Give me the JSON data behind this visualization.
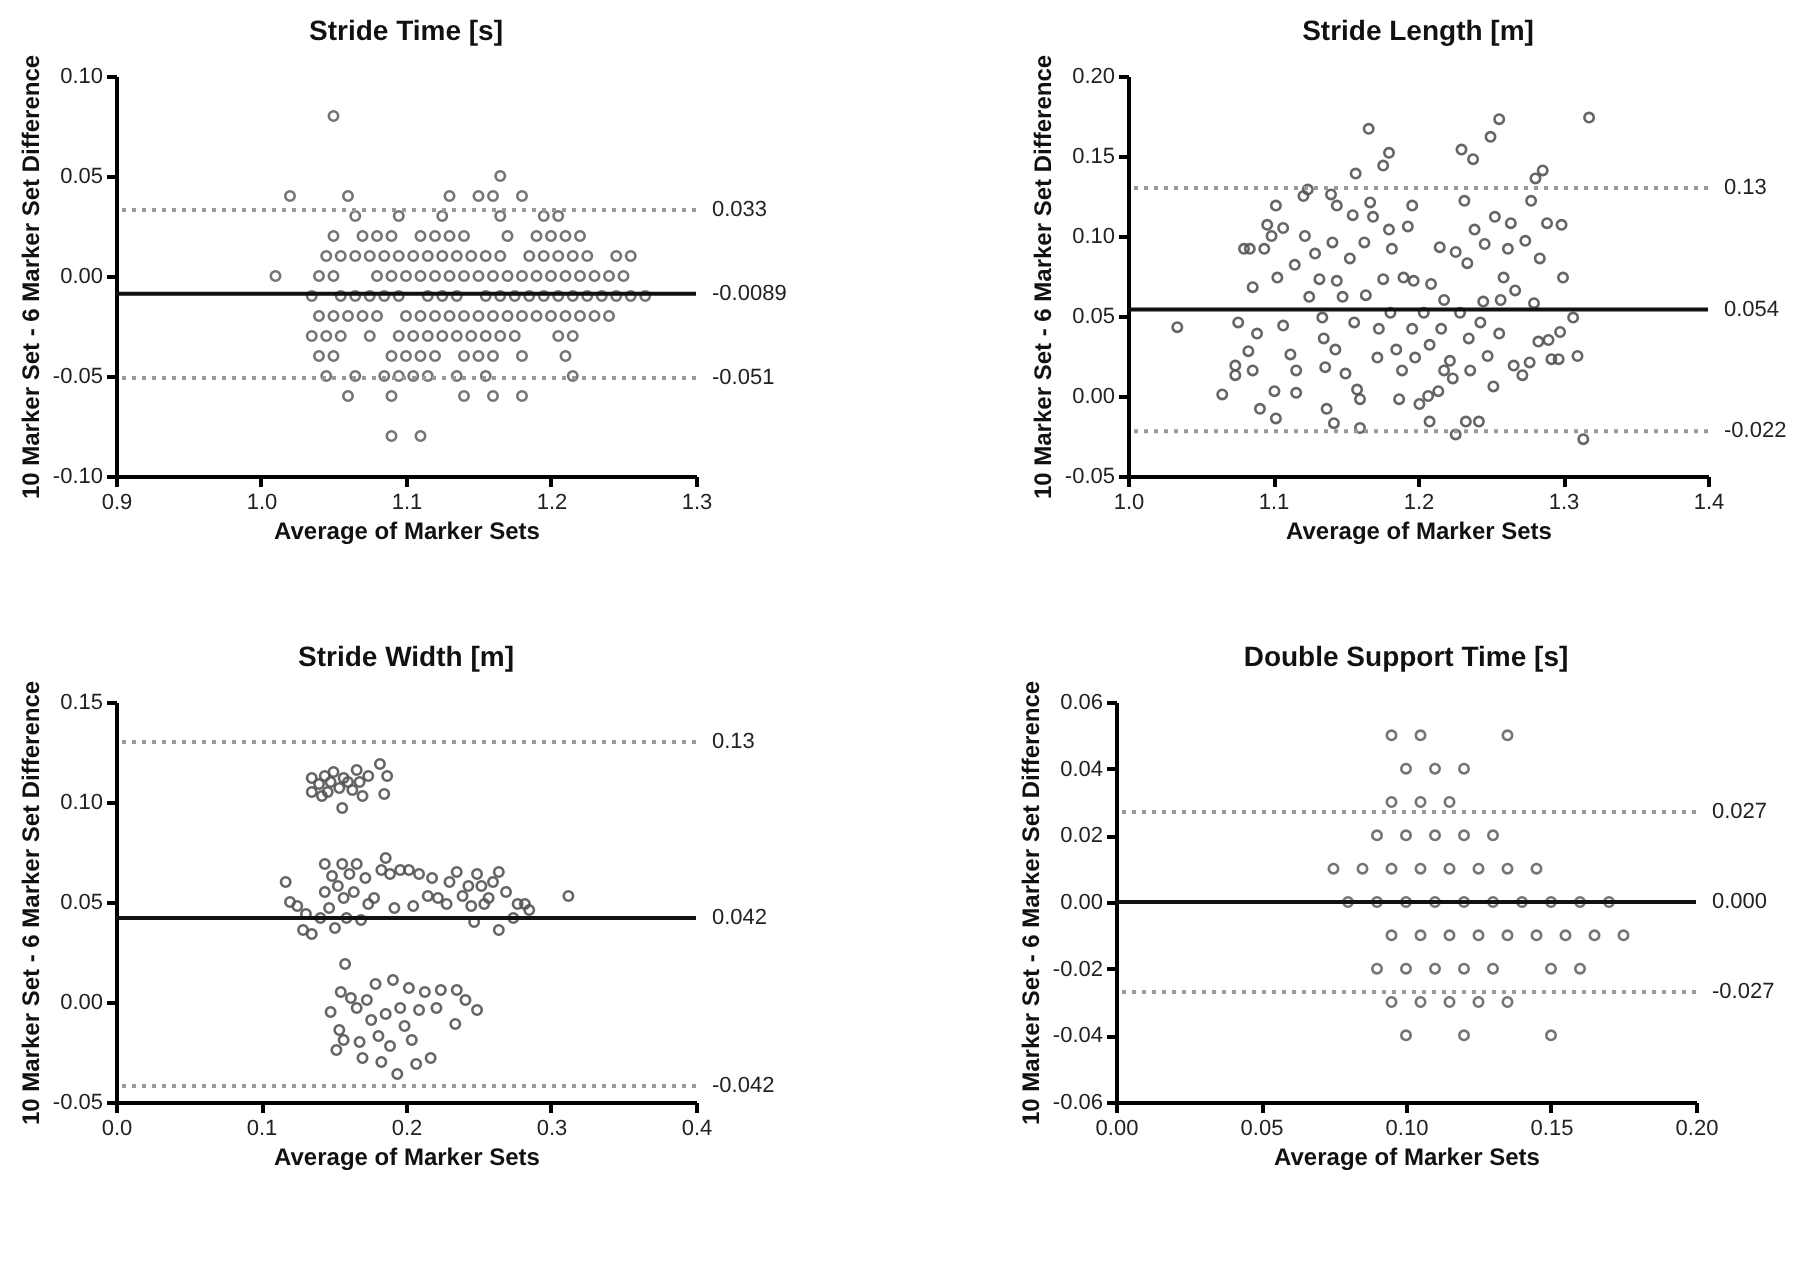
{
  "chart_data": [
    {
      "type": "scatter",
      "title": "Stride Time [s]",
      "xlabel": "Average of Marker Sets",
      "ylabel": "10 Marker Set - 6 Marker Set Difference",
      "marker": "circle",
      "xlim": [
        0.9,
        1.3
      ],
      "xticks": [
        0.9,
        {
          "value": 1,
          "label": "1.0"
        },
        1.1,
        1.2,
        1.3
      ],
      "ylim": [
        -0.1,
        0.1
      ],
      "yticks": [
        {
          "value": -0.1,
          "label": "-0.10"
        },
        -0.05,
        {
          "value": 0,
          "label": "0.00"
        },
        0.05,
        {
          "value": 0.1,
          "label": "0.10"
        }
      ],
      "ref_lines": [
        {
          "axis": "y",
          "value": 0.033,
          "label": "0.033",
          "line_style": "dotted",
          "color": "#999999"
        },
        {
          "axis": "y",
          "value": -0.0089,
          "label": "-0.0089",
          "line_style": "solid",
          "color": "#111111"
        },
        {
          "axis": "y",
          "value": -0.051,
          "label": "-0.051",
          "line_style": "dotted",
          "color": "#999999"
        }
      ],
      "series": [
        {
          "color": "#666666",
          "x": [
            1.05,
            1.165,
            1.02,
            1.06,
            1.13,
            1.15,
            1.16,
            1.18,
            1.065,
            1.095,
            1.125,
            1.165,
            1.195,
            1.205,
            1.05,
            1.07,
            1.08,
            1.09,
            1.11,
            1.12,
            1.13,
            1.14,
            1.17,
            1.19,
            1.2,
            1.21,
            1.22,
            1.045,
            1.055,
            1.065,
            1.075,
            1.085,
            1.095,
            1.105,
            1.115,
            1.125,
            1.135,
            1.145,
            1.155,
            1.165,
            1.185,
            1.195,
            1.205,
            1.215,
            1.225,
            1.245,
            1.255,
            1.01,
            1.04,
            1.05,
            1.08,
            1.09,
            1.1,
            1.11,
            1.12,
            1.13,
            1.14,
            1.15,
            1.16,
            1.17,
            1.18,
            1.19,
            1.2,
            1.21,
            1.22,
            1.23,
            1.24,
            1.25,
            1.035,
            1.055,
            1.065,
            1.075,
            1.085,
            1.095,
            1.115,
            1.125,
            1.135,
            1.155,
            1.165,
            1.175,
            1.185,
            1.195,
            1.205,
            1.215,
            1.225,
            1.235,
            1.245,
            1.255,
            1.265,
            1.04,
            1.05,
            1.06,
            1.07,
            1.08,
            1.1,
            1.11,
            1.12,
            1.13,
            1.14,
            1.15,
            1.16,
            1.17,
            1.18,
            1.19,
            1.2,
            1.21,
            1.22,
            1.23,
            1.24,
            1.035,
            1.045,
            1.055,
            1.075,
            1.095,
            1.105,
            1.115,
            1.125,
            1.135,
            1.145,
            1.155,
            1.165,
            1.175,
            1.205,
            1.215,
            1.04,
            1.05,
            1.09,
            1.1,
            1.11,
            1.12,
            1.14,
            1.15,
            1.16,
            1.18,
            1.21,
            1.045,
            1.065,
            1.085,
            1.095,
            1.105,
            1.115,
            1.135,
            1.155,
            1.215,
            1.06,
            1.09,
            1.14,
            1.16,
            1.18,
            1.09,
            1.11
          ],
          "values": [
            0.08,
            0.05,
            0.04,
            0.04,
            0.04,
            0.04,
            0.04,
            0.04,
            0.03,
            0.03,
            0.03,
            0.03,
            0.03,
            0.03,
            0.02,
            0.02,
            0.02,
            0.02,
            0.02,
            0.02,
            0.02,
            0.02,
            0.02,
            0.02,
            0.02,
            0.02,
            0.02,
            0.01,
            0.01,
            0.01,
            0.01,
            0.01,
            0.01,
            0.01,
            0.01,
            0.01,
            0.01,
            0.01,
            0.01,
            0.01,
            0.01,
            0.01,
            0.01,
            0.01,
            0.01,
            0.01,
            0.01,
            0,
            0,
            0,
            0,
            0,
            0,
            0,
            0,
            0,
            0,
            0,
            0,
            0,
            0,
            0,
            0,
            0,
            0,
            0,
            0,
            0,
            -0.01,
            -0.01,
            -0.01,
            -0.01,
            -0.01,
            -0.01,
            -0.01,
            -0.01,
            -0.01,
            -0.01,
            -0.01,
            -0.01,
            -0.01,
            -0.01,
            -0.01,
            -0.01,
            -0.01,
            -0.01,
            -0.01,
            -0.01,
            -0.01,
            -0.02,
            -0.02,
            -0.02,
            -0.02,
            -0.02,
            -0.02,
            -0.02,
            -0.02,
            -0.02,
            -0.02,
            -0.02,
            -0.02,
            -0.02,
            -0.02,
            -0.02,
            -0.02,
            -0.02,
            -0.02,
            -0.02,
            -0.02,
            -0.03,
            -0.03,
            -0.03,
            -0.03,
            -0.03,
            -0.03,
            -0.03,
            -0.03,
            -0.03,
            -0.03,
            -0.03,
            -0.03,
            -0.03,
            -0.03,
            -0.03,
            -0.04,
            -0.04,
            -0.04,
            -0.04,
            -0.04,
            -0.04,
            -0.04,
            -0.04,
            -0.04,
            -0.04,
            -0.04,
            -0.05,
            -0.05,
            -0.05,
            -0.05,
            -0.05,
            -0.05,
            -0.05,
            -0.05,
            -0.05,
            -0.06,
            -0.06,
            -0.06,
            -0.06,
            -0.06,
            -0.08,
            -0.08
          ]
        }
      ]
    },
    {
      "type": "scatter",
      "title": "Stride Length [m]",
      "xlabel": "Average of Marker Sets",
      "ylabel": "10 Marker Set - 6 Marker Set Difference",
      "marker": "circle",
      "xlim": [
        1.0,
        1.4
      ],
      "xticks": [
        {
          "value": 1,
          "label": "1.0"
        },
        1.1,
        1.2,
        1.3,
        1.4
      ],
      "ylim": [
        -0.05,
        0.2
      ],
      "yticks": [
        -0.05,
        {
          "value": 0,
          "label": "0.00"
        },
        0.05,
        {
          "value": 0.1,
          "label": "0.10"
        },
        0.15,
        {
          "value": 0.2,
          "label": "0.20"
        }
      ],
      "ref_lines": [
        {
          "axis": "y",
          "value": 0.13,
          "label": "0.13",
          "line_style": "dotted",
          "color": "#999999"
        },
        {
          "axis": "y",
          "value": 0.054,
          "label": "0.054",
          "line_style": "solid",
          "color": "#111111"
        },
        {
          "axis": "y",
          "value": -0.022,
          "label": "-0.022",
          "line_style": "dotted",
          "color": "#999999"
        }
      ],
      "series": [
        {
          "color": "#555555",
          "x": [
            1.034,
            1.065,
            1.074,
            1.074,
            1.076,
            1.08,
            1.084,
            1.094,
            1.086,
            1.089,
            1.083,
            1.086,
            1.091,
            1.096,
            1.099,
            1.102,
            1.101,
            1.102,
            1.103,
            1.107,
            1.107,
            1.112,
            1.115,
            1.116,
            1.116,
            1.121,
            1.124,
            1.122,
            1.125,
            1.129,
            1.132,
            1.134,
            1.135,
            1.136,
            1.137,
            1.14,
            1.144,
            1.141,
            1.144,
            1.148,
            1.143,
            1.142,
            1.15,
            1.153,
            1.155,
            1.157,
            1.156,
            1.158,
            1.16,
            1.16,
            1.163,
            1.166,
            1.167,
            1.164,
            1.169,
            1.172,
            1.173,
            1.176,
            1.176,
            1.18,
            1.18,
            1.181,
            1.182,
            1.185,
            1.187,
            1.189,
            1.19,
            1.193,
            1.196,
            1.196,
            1.197,
            1.198,
            1.201,
            1.204,
            1.207,
            1.208,
            1.208,
            1.209,
            1.214,
            1.215,
            1.216,
            1.218,
            1.218,
            1.222,
            1.224,
            1.226,
            1.226,
            1.229,
            1.23,
            1.232,
            1.234,
            1.233,
            1.235,
            1.236,
            1.238,
            1.239,
            1.242,
            1.243,
            1.245,
            1.246,
            1.248,
            1.25,
            1.252,
            1.253,
            1.256,
            1.256,
            1.257,
            1.259,
            1.262,
            1.264,
            1.266,
            1.267,
            1.272,
            1.274,
            1.277,
            1.278,
            1.28,
            1.281,
            1.283,
            1.286,
            1.284,
            1.289,
            1.29,
            1.292,
            1.297,
            1.298,
            1.3,
            1.299,
            1.307,
            1.31,
            1.314,
            1.318
          ],
          "values": [
            0.043,
            0.001,
            0.013,
            0.019,
            0.046,
            0.092,
            0.092,
            0.092,
            0.068,
            0.039,
            0.028,
            0.016,
            -0.008,
            0.107,
            0.1,
            0.119,
            0.003,
            -0.014,
            0.074,
            0.105,
            0.044,
            0.026,
            0.082,
            0.002,
            0.016,
            0.125,
            0.129,
            0.1,
            0.062,
            0.089,
            0.073,
            0.049,
            0.036,
            0.018,
            -0.008,
            0.126,
            0.119,
            0.096,
            0.072,
            0.062,
            0.029,
            -0.017,
            0.014,
            0.086,
            0.113,
            0.139,
            0.046,
            0.004,
            -0.02,
            -0.002,
            0.096,
            0.167,
            0.121,
            0.063,
            0.112,
            0.024,
            0.042,
            0.073,
            0.144,
            0.152,
            0.104,
            0.052,
            0.092,
            0.029,
            -0.002,
            0.016,
            0.074,
            0.106,
            0.119,
            0.042,
            0.072,
            0.024,
            -0.005,
            0.052,
            0.0,
            0.032,
            -0.016,
            0.07,
            0.003,
            0.093,
            0.042,
            0.06,
            0.016,
            0.022,
            0.011,
            -0.024,
            0.09,
            0.052,
            0.154,
            0.122,
            0.083,
            -0.016,
            0.036,
            0.016,
            0.148,
            0.104,
            -0.016,
            0.046,
            0.059,
            0.095,
            0.025,
            0.162,
            0.006,
            0.112,
            0.173,
            0.039,
            0.06,
            0.074,
            0.092,
            0.108,
            0.019,
            0.066,
            0.013,
            0.097,
            0.021,
            0.122,
            0.058,
            0.136,
            0.034,
            0.141,
            0.086,
            0.108,
            0.035,
            0.023,
            0.023,
            0.04,
            0.074,
            0.107,
            0.049,
            0.025,
            -0.027,
            0.174
          ]
        }
      ]
    },
    {
      "type": "scatter",
      "title": "Stride Width [m]",
      "xlabel": "Average of Marker Sets",
      "ylabel": "10 Marker Set - 6 Marker Set Difference",
      "marker": "circle",
      "xlim": [
        0,
        0.4
      ],
      "xticks": [
        {
          "value": 0,
          "label": "0.0"
        },
        0.1,
        0.2,
        0.3,
        0.4
      ],
      "ylim": [
        -0.05,
        0.15
      ],
      "yticks": [
        -0.05,
        {
          "value": 0,
          "label": "0.00"
        },
        0.05,
        {
          "value": 0.1,
          "label": "0.10"
        },
        0.15
      ],
      "ref_lines": [
        {
          "axis": "y",
          "value": 0.13,
          "label": "0.13",
          "line_style": "dotted",
          "color": "#999999"
        },
        {
          "axis": "y",
          "value": 0.042,
          "label": "0.042",
          "line_style": "solid",
          "color": "#111111"
        },
        {
          "axis": "y",
          "value": -0.042,
          "label": "-0.042",
          "line_style": "dotted",
          "color": "#999999"
        }
      ],
      "series": [
        {
          "color": "#555555",
          "x": [
            0.135,
            0.135,
            0.14,
            0.144,
            0.146,
            0.148,
            0.15,
            0.154,
            0.156,
            0.157,
            0.16,
            0.163,
            0.166,
            0.168,
            0.174,
            0.182,
            0.187,
            0.185,
            0.17,
            0.142,
            0.117,
            0.12,
            0.125,
            0.129,
            0.135,
            0.131,
            0.141,
            0.144,
            0.144,
            0.147,
            0.149,
            0.151,
            0.153,
            0.156,
            0.157,
            0.159,
            0.161,
            0.164,
            0.166,
            0.169,
            0.172,
            0.174,
            0.178,
            0.183,
            0.186,
            0.189,
            0.192,
            0.196,
            0.202,
            0.205,
            0.209,
            0.215,
            0.218,
            0.222,
            0.228,
            0.23,
            0.235,
            0.239,
            0.243,
            0.245,
            0.247,
            0.249,
            0.252,
            0.254,
            0.257,
            0.26,
            0.264,
            0.264,
            0.269,
            0.274,
            0.277,
            0.282,
            0.285,
            0.312,
            0.158,
            0.155,
            0.148,
            0.152,
            0.154,
            0.157,
            0.162,
            0.166,
            0.168,
            0.17,
            0.173,
            0.176,
            0.179,
            0.181,
            0.183,
            0.186,
            0.189,
            0.191,
            0.194,
            0.196,
            0.199,
            0.202,
            0.204,
            0.207,
            0.209,
            0.213,
            0.217,
            0.221,
            0.224,
            0.234,
            0.235,
            0.241,
            0.249
          ],
          "values": [
            0.112,
            0.105,
            0.109,
            0.113,
            0.105,
            0.11,
            0.115,
            0.107,
            0.097,
            0.112,
            0.11,
            0.106,
            0.116,
            0.11,
            0.113,
            0.119,
            0.113,
            0.104,
            0.103,
            0.103,
            0.06,
            0.05,
            0.048,
            0.036,
            0.034,
            0.044,
            0.042,
            0.069,
            0.055,
            0.047,
            0.063,
            0.037,
            0.058,
            0.069,
            0.052,
            0.042,
            0.064,
            0.055,
            0.069,
            0.041,
            0.062,
            0.049,
            0.052,
            0.066,
            0.072,
            0.064,
            0.047,
            0.066,
            0.066,
            0.048,
            0.064,
            0.053,
            0.062,
            0.052,
            0.049,
            0.06,
            0.065,
            0.053,
            0.058,
            0.048,
            0.04,
            0.064,
            0.058,
            0.049,
            0.052,
            0.06,
            0.065,
            0.036,
            0.055,
            0.042,
            0.049,
            0.049,
            0.046,
            0.053,
            0.019,
            0.005,
            -0.005,
            -0.024,
            -0.014,
            -0.019,
            0.002,
            -0.003,
            -0.02,
            -0.028,
            0.001,
            -0.009,
            0.009,
            -0.017,
            -0.03,
            -0.006,
            -0.022,
            0.011,
            -0.036,
            -0.003,
            -0.012,
            0.007,
            -0.019,
            -0.031,
            -0.004,
            0.005,
            -0.028,
            -0.003,
            0.006,
            -0.011,
            0.006,
            0.001,
            -0.004
          ]
        }
      ]
    },
    {
      "type": "scatter",
      "title": "Double Support Time [s]",
      "xlabel": "Average of Marker Sets",
      "ylabel": "10 Marker Set - 6 Marker Set Difference",
      "marker": "circle",
      "xlim": [
        0,
        0.2
      ],
      "xticks": [
        {
          "value": 0,
          "label": "0.00"
        },
        0.05,
        {
          "value": 0.1,
          "label": "0.10"
        },
        0.15,
        {
          "value": 0.2,
          "label": "0.20"
        }
      ],
      "ylim": [
        -0.06,
        0.06
      ],
      "yticks": [
        -0.06,
        -0.04,
        -0.02,
        {
          "value": 0,
          "label": "0.00"
        },
        0.02,
        0.04,
        0.06
      ],
      "ref_lines": [
        {
          "axis": "y",
          "value": 0.027,
          "label": "0.027",
          "line_style": "dotted",
          "color": "#999999"
        },
        {
          "axis": "y",
          "value": 0,
          "label": "0.000",
          "line_style": "solid",
          "color": "#111111"
        },
        {
          "axis": "y",
          "value": -0.027,
          "label": "-0.027",
          "line_style": "dotted",
          "color": "#999999"
        }
      ],
      "series": [
        {
          "color": "#666666",
          "x": [
            0.095,
            0.105,
            0.135,
            0.1,
            0.11,
            0.12,
            0.095,
            0.105,
            0.115,
            0.09,
            0.1,
            0.11,
            0.12,
            0.13,
            0.075,
            0.085,
            0.095,
            0.105,
            0.115,
            0.125,
            0.135,
            0.145,
            0.08,
            0.09,
            0.1,
            0.11,
            0.12,
            0.13,
            0.14,
            0.15,
            0.16,
            0.17,
            0.095,
            0.105,
            0.115,
            0.125,
            0.135,
            0.145,
            0.155,
            0.165,
            0.175,
            0.09,
            0.1,
            0.11,
            0.12,
            0.13,
            0.15,
            0.16,
            0.095,
            0.105,
            0.115,
            0.125,
            0.135,
            0.1,
            0.12,
            0.15
          ],
          "values": [
            0.05,
            0.05,
            0.05,
            0.04,
            0.04,
            0.04,
            0.03,
            0.03,
            0.03,
            0.02,
            0.02,
            0.02,
            0.02,
            0.02,
            0.01,
            0.01,
            0.01,
            0.01,
            0.01,
            0.01,
            0.01,
            0.01,
            0,
            0,
            0,
            0,
            0,
            0,
            0,
            0,
            0,
            0,
            -0.01,
            -0.01,
            -0.01,
            -0.01,
            -0.01,
            -0.01,
            -0.01,
            -0.01,
            -0.01,
            -0.02,
            -0.02,
            -0.02,
            -0.02,
            -0.02,
            -0.02,
            -0.02,
            -0.03,
            -0.03,
            -0.03,
            -0.03,
            -0.03,
            -0.04,
            -0.04,
            -0.04
          ]
        }
      ]
    }
  ]
}
